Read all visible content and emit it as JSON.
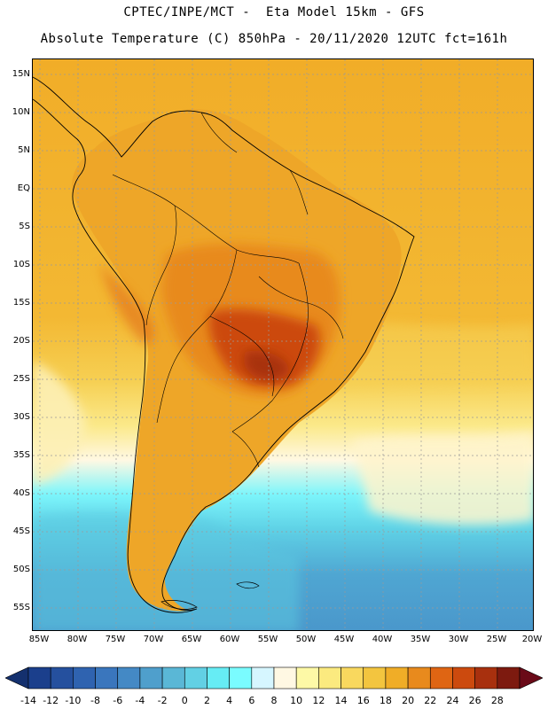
{
  "header": {
    "title_line1": "CPTEC/INPE/MCT -  Eta Model 15km - GFS",
    "title_line2": "Absolute Temperature (C) 850hPa - 20/11/2020 12UTC fct=161h"
  },
  "map": {
    "lat_labels": [
      "15N",
      "10N",
      "5N",
      "EQ",
      "5S",
      "10S",
      "15S",
      "20S",
      "25S",
      "30S",
      "35S",
      "40S",
      "45S",
      "50S",
      "55S"
    ],
    "lon_labels": [
      "85W",
      "80W",
      "75W",
      "70W",
      "65W",
      "60W",
      "55W",
      "50W",
      "45W",
      "40W",
      "35W",
      "30W",
      "25W",
      "20W"
    ],
    "graticule_color": "#9a9a9a",
    "coast_color": "#000000"
  },
  "colorbar": {
    "labels": [
      "-14",
      "-12",
      "-10",
      "-8",
      "-6",
      "-4",
      "-2",
      "0",
      "2",
      "4",
      "6",
      "8",
      "10",
      "12",
      "14",
      "16",
      "18",
      "20",
      "22",
      "24",
      "26",
      "28"
    ],
    "colors": [
      "#1b3f8c",
      "#25509e",
      "#2f63b0",
      "#3a76bd",
      "#4489c5",
      "#4f9fcc",
      "#5ab7d6",
      "#62d0e4",
      "#66ecf4",
      "#7afcff",
      "#d6f6ff",
      "#fff8e3",
      "#fdf9a6",
      "#fbea7f",
      "#f9d85e",
      "#f3c53f",
      "#f0ad27",
      "#e88a1d",
      "#df6513",
      "#cc4a0e",
      "#a8300e",
      "#7d1a0f"
    ],
    "low_arrow_color": "#14306e",
    "high_arrow_color": "#6a0a18"
  }
}
